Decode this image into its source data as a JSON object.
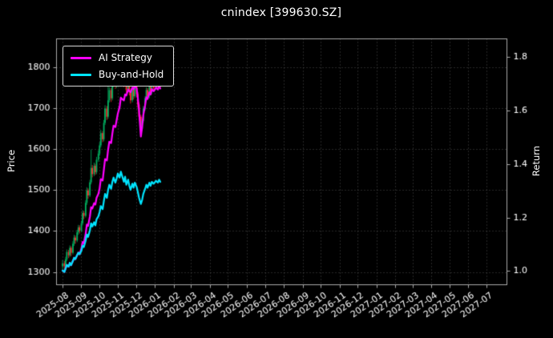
{
  "header": {
    "title": "cnindex [399630.SZ]"
  },
  "chart_data": {
    "type": "candlestick_with_lines",
    "title": "cnindex [399630.SZ]",
    "xlabel": "",
    "ylabel_left": "Price",
    "ylabel_right": "Return",
    "grid": "dotted",
    "legend_position": "upper-left",
    "x_tick_labels": [
      "2025-08",
      "2025-09",
      "2025-10",
      "2025-11",
      "2025-12",
      "2026-01",
      "2026-02",
      "2026-03",
      "2026-04",
      "2026-05",
      "2026-06",
      "2026-07",
      "2026-08",
      "2026-09",
      "2026-10",
      "2026-11",
      "2026-12",
      "2027-01",
      "2027-02",
      "2027-03",
      "2027-04",
      "2027-05",
      "2027-06",
      "2027-07"
    ],
    "x_range": [
      "2025-07-22",
      "2027-08-03"
    ],
    "left_axis": {
      "ticks": [
        1300,
        1400,
        1500,
        1600,
        1700,
        1800
      ],
      "range": [
        1270,
        1870
      ]
    },
    "right_axis": {
      "tick_labels": [
        "1.0",
        "1.2",
        "1.4",
        "1.6",
        "1.8"
      ],
      "ticks": [
        1.0,
        1.2,
        1.4,
        1.6,
        1.8
      ],
      "range": [
        0.95,
        1.87
      ]
    },
    "theme": {
      "background": "#000000",
      "text": "#ffffff",
      "grid": "#4f4f4f",
      "spine": "#aaaaaa",
      "candle_up": "#00b060",
      "candle_down": "#fe2e2e"
    },
    "candles": {
      "columns": [
        "date",
        "open",
        "high",
        "low",
        "close"
      ],
      "rows": [
        [
          "2025-08-01",
          1315,
          1330,
          1305,
          1322
        ],
        [
          "2025-08-04",
          1322,
          1328,
          1306,
          1315
        ],
        [
          "2025-08-06",
          1315,
          1338,
          1310,
          1332
        ],
        [
          "2025-08-08",
          1332,
          1356,
          1328,
          1350
        ],
        [
          "2025-08-11",
          1350,
          1355,
          1335,
          1342
        ],
        [
          "2025-08-13",
          1342,
          1366,
          1338,
          1360
        ],
        [
          "2025-08-15",
          1360,
          1364,
          1340,
          1348
        ],
        [
          "2025-08-18",
          1348,
          1376,
          1344,
          1370
        ],
        [
          "2025-08-20",
          1370,
          1392,
          1365,
          1385
        ],
        [
          "2025-08-22",
          1385,
          1390,
          1370,
          1378
        ],
        [
          "2025-08-25",
          1378,
          1404,
          1374,
          1398
        ],
        [
          "2025-08-27",
          1398,
          1416,
          1392,
          1410
        ],
        [
          "2025-08-29",
          1410,
          1415,
          1395,
          1402
        ],
        [
          "2025-09-01",
          1402,
          1426,
          1398,
          1420
        ],
        [
          "2025-09-03",
          1420,
          1452,
          1415,
          1445
        ],
        [
          "2025-09-05",
          1445,
          1450,
          1430,
          1438
        ],
        [
          "2025-09-08",
          1438,
          1476,
          1434,
          1470
        ],
        [
          "2025-09-10",
          1470,
          1508,
          1465,
          1500
        ],
        [
          "2025-09-12",
          1500,
          1505,
          1480,
          1488
        ],
        [
          "2025-09-15",
          1488,
          1526,
          1484,
          1520
        ],
        [
          "2025-09-17",
          1520,
          1600,
          1515,
          1555
        ],
        [
          "2025-09-19",
          1555,
          1562,
          1532,
          1540
        ],
        [
          "2025-09-22",
          1540,
          1568,
          1535,
          1560
        ],
        [
          "2025-09-24",
          1560,
          1565,
          1538,
          1545
        ],
        [
          "2025-09-26",
          1545,
          1582,
          1540,
          1575
        ],
        [
          "2025-09-29",
          1575,
          1598,
          1570,
          1590
        ],
        [
          "2025-10-01",
          1590,
          1618,
          1585,
          1610
        ],
        [
          "2025-10-03",
          1610,
          1648,
          1605,
          1640
        ],
        [
          "2025-10-06",
          1640,
          1645,
          1618,
          1625
        ],
        [
          "2025-10-08",
          1625,
          1672,
          1620,
          1665
        ],
        [
          "2025-10-10",
          1665,
          1708,
          1660,
          1700
        ],
        [
          "2025-10-13",
          1700,
          1706,
          1672,
          1680
        ],
        [
          "2025-10-15",
          1680,
          1770,
          1675,
          1720
        ],
        [
          "2025-10-17",
          1720,
          1752,
          1715,
          1745
        ],
        [
          "2025-10-20",
          1745,
          1750,
          1716,
          1725
        ],
        [
          "2025-10-22",
          1725,
          1800,
          1720,
          1760
        ],
        [
          "2025-10-24",
          1760,
          1788,
          1752,
          1780
        ],
        [
          "2025-10-27",
          1780,
          1786,
          1748,
          1755
        ],
        [
          "2025-10-29",
          1755,
          1782,
          1750,
          1775
        ],
        [
          "2025-10-31",
          1775,
          1835,
          1770,
          1800
        ],
        [
          "2025-11-03",
          1800,
          1806,
          1772,
          1780
        ],
        [
          "2025-11-05",
          1780,
          1818,
          1775,
          1810
        ],
        [
          "2025-11-07",
          1810,
          1815,
          1782,
          1790
        ],
        [
          "2025-11-10",
          1790,
          1795,
          1752,
          1760
        ],
        [
          "2025-11-12",
          1760,
          1792,
          1755,
          1785
        ],
        [
          "2025-11-14",
          1785,
          1790,
          1738,
          1745
        ],
        [
          "2025-11-17",
          1745,
          1778,
          1740,
          1770
        ],
        [
          "2025-11-19",
          1770,
          1775,
          1732,
          1740
        ],
        [
          "2025-11-21",
          1740,
          1745,
          1712,
          1720
        ],
        [
          "2025-11-24",
          1720,
          1756,
          1715,
          1750
        ],
        [
          "2025-11-26",
          1750,
          1755,
          1722,
          1730
        ],
        [
          "2025-11-28",
          1730,
          1762,
          1726,
          1755
        ],
        [
          "2025-12-01",
          1755,
          1760,
          1728,
          1735
        ],
        [
          "2025-12-03",
          1735,
          1740,
          1702,
          1710
        ],
        [
          "2025-12-05",
          1710,
          1715,
          1672,
          1680
        ],
        [
          "2025-12-08",
          1680,
          1685,
          1630,
          1650
        ],
        [
          "2025-12-10",
          1650,
          1676,
          1645,
          1670
        ],
        [
          "2025-12-12",
          1670,
          1706,
          1665,
          1700
        ],
        [
          "2025-12-15",
          1700,
          1730,
          1695,
          1725
        ],
        [
          "2025-12-17",
          1725,
          1752,
          1720,
          1745
        ],
        [
          "2025-12-19",
          1745,
          1750,
          1722,
          1730
        ],
        [
          "2025-12-22",
          1730,
          1760,
          1725,
          1755
        ],
        [
          "2025-12-24",
          1755,
          1758,
          1732,
          1740
        ],
        [
          "2025-12-26",
          1740,
          1766,
          1735,
          1760
        ],
        [
          "2025-12-29",
          1760,
          1764,
          1742,
          1750
        ],
        [
          "2026-01-02",
          1750,
          1772,
          1745,
          1765
        ],
        [
          "2026-01-05",
          1765,
          1770,
          1746,
          1755
        ],
        [
          "2026-01-07",
          1755,
          1776,
          1750,
          1770
        ],
        [
          "2026-01-09",
          1770,
          1774,
          1752,
          1760
        ]
      ]
    },
    "series": [
      {
        "name": "AI Strategy",
        "axis": "right",
        "color": "#ff00ff",
        "values": [
          1.003,
          0.998,
          1.011,
          1.024,
          1.018,
          1.032,
          1.023,
          1.039,
          1.051,
          1.046,
          1.061,
          1.07,
          1.064,
          1.085,
          1.11,
          1.105,
          1.14,
          1.175,
          1.17,
          1.205,
          1.24,
          1.235,
          1.255,
          1.25,
          1.275,
          1.29,
          1.31,
          1.345,
          1.34,
          1.38,
          1.42,
          1.415,
          1.455,
          1.485,
          1.48,
          1.515,
          1.545,
          1.54,
          1.565,
          1.59,
          1.615,
          1.65,
          1.645,
          1.64,
          1.662,
          1.658,
          1.68,
          1.675,
          1.67,
          1.688,
          1.682,
          1.695,
          1.685,
          1.648,
          1.6,
          1.505,
          1.54,
          1.585,
          1.622,
          1.652,
          1.645,
          1.67,
          1.662,
          1.682,
          1.674,
          1.688,
          1.68,
          1.694,
          1.684
        ]
      },
      {
        "name": "Buy-and-Hold",
        "axis": "right",
        "color": "#00e5ff",
        "values": [
          1.003,
          0.998,
          1.011,
          1.024,
          1.018,
          1.032,
          1.023,
          1.039,
          1.051,
          1.046,
          1.061,
          1.07,
          1.064,
          1.077,
          1.096,
          1.091,
          1.115,
          1.138,
          1.129,
          1.153,
          1.18,
          1.168,
          1.184,
          1.172,
          1.195,
          1.206,
          1.222,
          1.244,
          1.233,
          1.263,
          1.29,
          1.275,
          1.305,
          1.324,
          1.309,
          1.335,
          1.351,
          1.332,
          1.347,
          1.366,
          1.351,
          1.373,
          1.358,
          1.335,
          1.354,
          1.324,
          1.343,
          1.32,
          1.305,
          1.328,
          1.313,
          1.332,
          1.316,
          1.297,
          1.275,
          1.252,
          1.267,
          1.29,
          1.309,
          1.324,
          1.313,
          1.332,
          1.32,
          1.335,
          1.328,
          1.339,
          1.332,
          1.343,
          1.335
        ]
      }
    ]
  }
}
